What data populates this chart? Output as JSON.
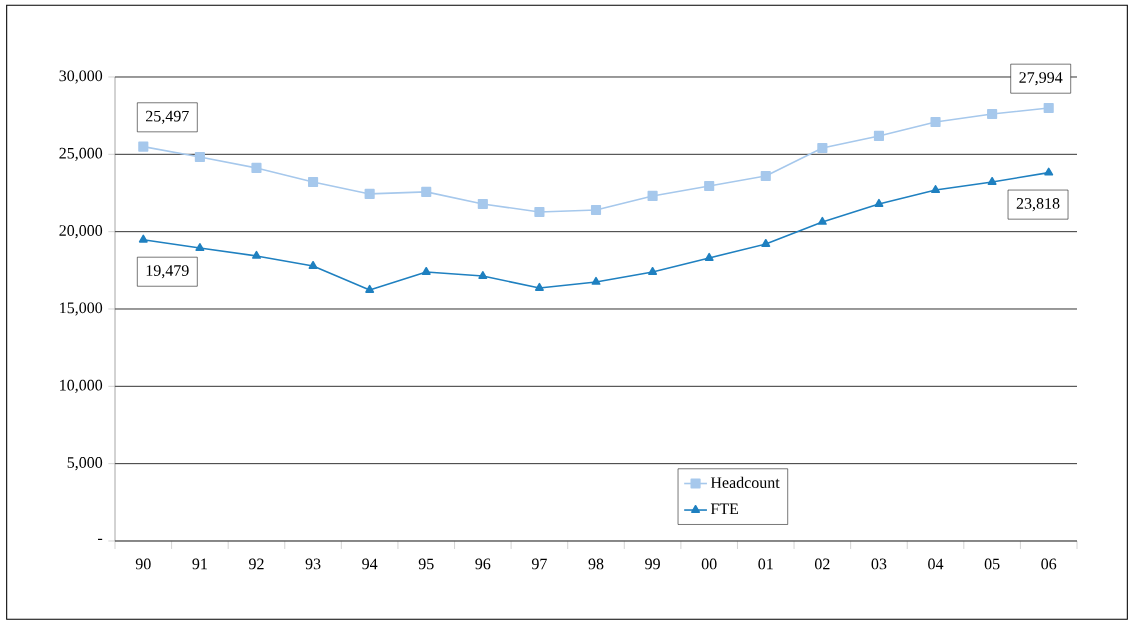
{
  "chart_data": {
    "type": "line",
    "categories": [
      "90",
      "91",
      "92",
      "93",
      "94",
      "95",
      "96",
      "97",
      "98",
      "99",
      "00",
      "01",
      "02",
      "03",
      "04",
      "05",
      "06"
    ],
    "series": [
      {
        "name": "Headcount",
        "color": "#a6c8ec",
        "marker": "square",
        "values": [
          25497,
          24830,
          24120,
          23210,
          22440,
          22570,
          21790,
          21270,
          21400,
          22310,
          22950,
          23600,
          25410,
          26190,
          27090,
          27610,
          27994
        ],
        "value_labels": [
          "25,497",
          null,
          null,
          null,
          null,
          null,
          null,
          null,
          null,
          null,
          null,
          null,
          null,
          null,
          null,
          null,
          "27,994"
        ]
      },
      {
        "name": "FTE",
        "color": "#1f80c0",
        "marker": "triangle",
        "values": [
          19479,
          18940,
          18430,
          17780,
          16230,
          17390,
          17130,
          16360,
          16750,
          17390,
          18300,
          19200,
          20630,
          21790,
          22690,
          23210,
          23818
        ],
        "value_labels": [
          "19,479",
          null,
          null,
          null,
          null,
          null,
          null,
          null,
          null,
          null,
          null,
          null,
          null,
          null,
          null,
          null,
          "23,818"
        ]
      }
    ],
    "ylim": [
      0,
      30000
    ],
    "yticks": [
      {
        "value": 0,
        "label": "-"
      },
      {
        "value": 5000,
        "label": "5,000"
      },
      {
        "value": 10000,
        "label": "10,000"
      },
      {
        "value": 15000,
        "label": "15,000"
      },
      {
        "value": 20000,
        "label": "20,000"
      },
      {
        "value": 25000,
        "label": "25,000"
      },
      {
        "value": 30000,
        "label": "30,000"
      }
    ],
    "grid": "y",
    "legend": "bottom right",
    "line_style": "solid"
  }
}
